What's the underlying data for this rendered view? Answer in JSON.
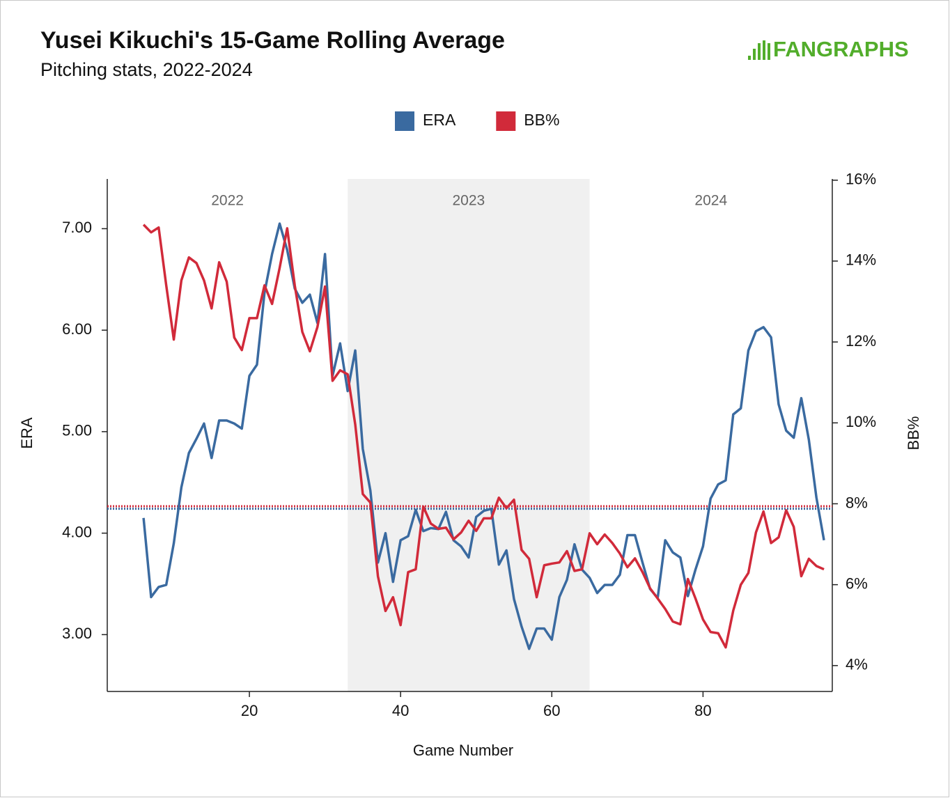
{
  "chart_data": {
    "type": "line",
    "title": "Yusei Kikuchi's 15-Game Rolling Average",
    "subtitle": "Pitching stats, 2022-2024",
    "logo": "FANGRAPHS",
    "xlabel": "Game Number",
    "ylabel": "ERA",
    "y2label": "BB%",
    "x": [
      6,
      7,
      8,
      9,
      10,
      11,
      12,
      13,
      14,
      15,
      16,
      17,
      18,
      19,
      20,
      21,
      22,
      23,
      24,
      25,
      26,
      27,
      28,
      29,
      30,
      31,
      32,
      33,
      34,
      35,
      36,
      37,
      38,
      39,
      40,
      41,
      42,
      43,
      44,
      45,
      46,
      47,
      48,
      49,
      50,
      51,
      52,
      53,
      54,
      55,
      56,
      57,
      58,
      59,
      60,
      61,
      62,
      63,
      64,
      65,
      66,
      67,
      68,
      69,
      70,
      71,
      72,
      73,
      74,
      75,
      76,
      77,
      78,
      79,
      80,
      81,
      82,
      83,
      84,
      85,
      86,
      87,
      88,
      89,
      90,
      91,
      92,
      93,
      94,
      95,
      96
    ],
    "series": [
      {
        "name": "ERA",
        "color": "#3a6aa0",
        "axis": "y",
        "values": [
          4.15,
          3.37,
          3.47,
          3.49,
          3.9,
          4.45,
          4.79,
          4.93,
          5.08,
          4.74,
          5.11,
          5.11,
          5.08,
          5.03,
          5.55,
          5.66,
          6.37,
          6.75,
          7.05,
          6.79,
          6.41,
          6.27,
          6.35,
          6.07,
          6.75,
          5.55,
          5.87,
          5.4,
          5.8,
          4.83,
          4.42,
          3.71,
          4.0,
          3.52,
          3.93,
          3.97,
          4.23,
          4.02,
          4.05,
          4.04,
          4.21,
          3.93,
          3.87,
          3.76,
          4.16,
          4.22,
          4.24,
          3.69,
          3.83,
          3.35,
          3.08,
          2.86,
          3.06,
          3.06,
          2.95,
          3.37,
          3.54,
          3.89,
          3.64,
          3.56,
          3.41,
          3.49,
          3.49,
          3.59,
          3.98,
          3.98,
          3.71,
          3.45,
          3.36,
          3.93,
          3.81,
          3.76,
          3.38,
          3.64,
          3.87,
          4.34,
          4.48,
          4.52,
          5.17,
          5.23,
          5.8,
          5.99,
          6.03,
          5.93,
          5.27,
          5.01,
          4.94,
          5.33,
          4.92,
          4.35,
          3.93
        ]
      },
      {
        "name": "BB%",
        "color": "#d12a3a",
        "axis": "y2",
        "values": [
          14.9,
          14.71,
          14.83,
          13.4,
          12.06,
          13.52,
          14.09,
          13.95,
          13.52,
          12.83,
          13.97,
          13.49,
          12.11,
          11.8,
          12.59,
          12.59,
          13.4,
          12.94,
          13.83,
          14.81,
          13.4,
          12.25,
          11.77,
          12.37,
          13.37,
          11.04,
          11.3,
          11.2,
          9.96,
          8.24,
          8.03,
          6.21,
          5.35,
          5.69,
          5.0,
          6.31,
          6.38,
          7.93,
          7.51,
          7.38,
          7.41,
          7.12,
          7.29,
          7.58,
          7.33,
          7.64,
          7.64,
          8.15,
          7.89,
          8.1,
          6.86,
          6.64,
          5.69,
          6.48,
          6.52,
          6.55,
          6.83,
          6.34,
          6.38,
          7.27,
          7.0,
          7.24,
          7.03,
          6.77,
          6.43,
          6.65,
          6.31,
          5.91,
          5.66,
          5.4,
          5.09,
          5.02,
          6.14,
          5.66,
          5.14,
          4.83,
          4.8,
          4.45,
          5.36,
          6.0,
          6.29,
          7.29,
          7.81,
          7.03,
          7.17,
          7.84,
          7.43,
          6.21,
          6.64,
          6.46,
          6.38
        ]
      }
    ],
    "reference_lines": [
      {
        "axis": "y",
        "value": 4.24,
        "color": "#3a6aa0"
      },
      {
        "axis": "y2",
        "value": 7.94,
        "color": "#d12a3a"
      }
    ],
    "periods": [
      {
        "label": "2022",
        "end": 33
      },
      {
        "label": "2023",
        "start": 33,
        "end": 65,
        "shaded": true
      },
      {
        "label": "2024",
        "start": 65
      }
    ],
    "xlim": [
      1.2,
      97.1
    ],
    "xticks": [
      20,
      40,
      60,
      80
    ],
    "ylim": [
      2.44,
      7.49
    ],
    "yticks": [
      {
        "value": 3,
        "label": "3.00"
      },
      {
        "value": 4,
        "label": "4.00"
      },
      {
        "value": 5,
        "label": "5.00"
      },
      {
        "value": 6,
        "label": "6.00"
      },
      {
        "value": 7,
        "label": "7.00"
      }
    ],
    "y2lim": [
      3.36,
      16.03
    ],
    "y2ticks": [
      {
        "value": 4,
        "label": "4%"
      },
      {
        "value": 6,
        "label": "6%"
      },
      {
        "value": 8,
        "label": "8%"
      },
      {
        "value": 10,
        "label": "10%"
      },
      {
        "value": 12,
        "label": "12%"
      },
      {
        "value": 14,
        "label": "14%"
      },
      {
        "value": 16,
        "label": "16%"
      }
    ],
    "legend": "top"
  }
}
